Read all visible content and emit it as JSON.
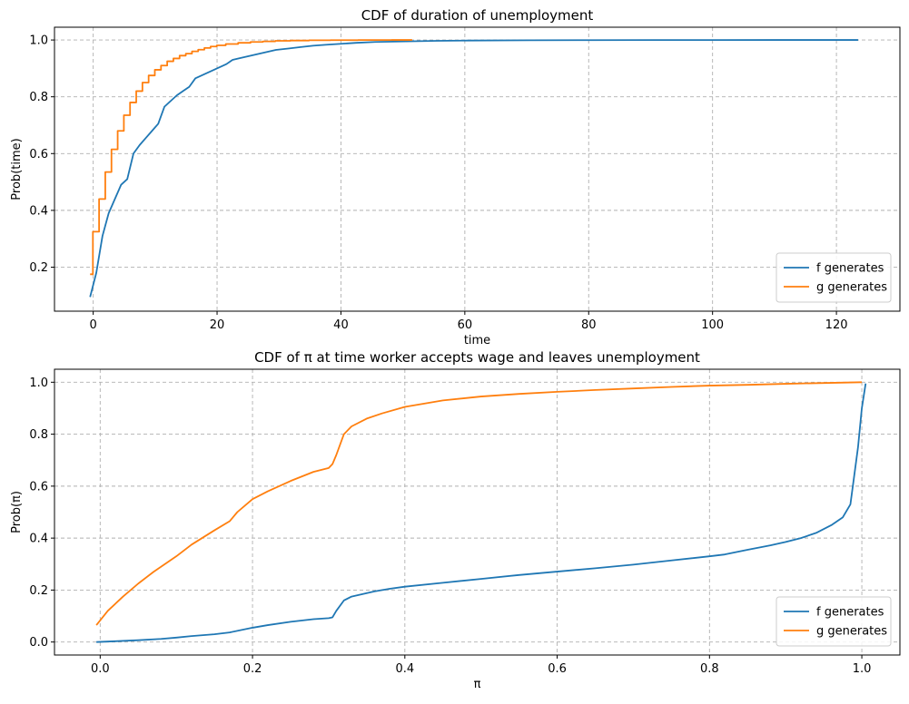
{
  "chart_data": [
    {
      "type": "line",
      "title": "CDF of duration of unemployment",
      "xlabel": "time",
      "ylabel": "Prob(time)",
      "xlim": [
        -6.25,
        130.25
      ],
      "ylim": [
        0.045,
        1.045
      ],
      "xticks": [
        0,
        20,
        40,
        60,
        80,
        100,
        120
      ],
      "xtick_labels": [
        "0",
        "20",
        "40",
        "60",
        "80",
        "100",
        "120"
      ],
      "yticks": [
        0.2,
        0.4,
        0.6,
        0.8,
        1.0
      ],
      "ytick_labels": [
        "0.2",
        "0.4",
        "0.6",
        "0.8",
        "1.0"
      ],
      "grid": true,
      "legend_position": "lower-right",
      "series": [
        {
          "name": "f generates",
          "color": "#1f77b4",
          "step": false,
          "x": [
            -0.5,
            0.5,
            1.5,
            2.5,
            3.5,
            4.5,
            5.5,
            6.5,
            7.5,
            8.5,
            9.5,
            10.5,
            11.5,
            12.5,
            13.5,
            14.5,
            15.5,
            16.5,
            17.5,
            18.5,
            19.5,
            20.5,
            21.5,
            22.5,
            23.5,
            25.5,
            27.5,
            29.5,
            31.5,
            33.5,
            35.5,
            37.5,
            39.5,
            42.5,
            45.5,
            50.5,
            55.5,
            60.5,
            70.5,
            80.5,
            90.5,
            100.5,
            110.5,
            123.5
          ],
          "y": [
            0.095,
            0.18,
            0.31,
            0.39,
            0.44,
            0.49,
            0.51,
            0.6,
            0.63,
            0.655,
            0.68,
            0.705,
            0.765,
            0.785,
            0.805,
            0.82,
            0.835,
            0.865,
            0.875,
            0.885,
            0.895,
            0.905,
            0.915,
            0.93,
            0.935,
            0.945,
            0.955,
            0.965,
            0.97,
            0.975,
            0.98,
            0.983,
            0.986,
            0.99,
            0.993,
            0.995,
            0.997,
            0.998,
            0.999,
            0.9995,
            0.9998,
            0.9999,
            1.0,
            1.0
          ]
        },
        {
          "name": "g generates",
          "color": "#ff7f0e",
          "step": true,
          "x": [
            -0.5,
            0.5,
            1.5,
            2.5,
            3.5,
            4.5,
            5.5,
            6.5,
            7.5,
            8.5,
            9.5,
            10.5,
            11.5,
            12.5,
            13.5,
            14.5,
            15.5,
            16.5,
            17.5,
            18.5,
            19.5,
            20.5,
            22.5,
            24.5,
            26.5,
            28.5,
            30.5,
            33.5,
            36.5,
            40.5,
            45.5,
            51.5
          ],
          "y": [
            0.175,
            0.325,
            0.44,
            0.535,
            0.615,
            0.68,
            0.735,
            0.78,
            0.82,
            0.85,
            0.875,
            0.895,
            0.91,
            0.925,
            0.935,
            0.945,
            0.952,
            0.96,
            0.966,
            0.972,
            0.977,
            0.981,
            0.986,
            0.99,
            0.993,
            0.995,
            0.997,
            0.998,
            0.999,
            0.9995,
            0.9998,
            1.0
          ]
        }
      ]
    },
    {
      "type": "line",
      "title": "CDF of π at time worker accepts wage and leaves unemployment",
      "xlabel": "π",
      "ylabel": "Prob(π)",
      "xlim": [
        -0.06,
        1.05
      ],
      "ylim": [
        -0.05,
        1.05
      ],
      "xticks": [
        0.0,
        0.2,
        0.4,
        0.6,
        0.8,
        1.0
      ],
      "xtick_labels": [
        "0.0",
        "0.2",
        "0.4",
        "0.6",
        "0.8",
        "1.0"
      ],
      "yticks": [
        0.0,
        0.2,
        0.4,
        0.6,
        0.8,
        1.0
      ],
      "ytick_labels": [
        "0.0",
        "0.2",
        "0.4",
        "0.6",
        "0.8",
        "1.0"
      ],
      "grid": true,
      "legend_position": "lower-right",
      "series": [
        {
          "name": "f generates",
          "color": "#1f77b4",
          "step": false,
          "x": [
            -0.005,
            0.02,
            0.05,
            0.08,
            0.1,
            0.12,
            0.15,
            0.17,
            0.2,
            0.22,
            0.25,
            0.28,
            0.3,
            0.305,
            0.31,
            0.32,
            0.33,
            0.345,
            0.36,
            0.38,
            0.4,
            0.45,
            0.5,
            0.55,
            0.6,
            0.65,
            0.7,
            0.75,
            0.8,
            0.82,
            0.85,
            0.88,
            0.9,
            0.92,
            0.94,
            0.96,
            0.975,
            0.985,
            0.995,
            1.0,
            1.005
          ],
          "y": [
            0.0,
            0.003,
            0.007,
            0.012,
            0.017,
            0.023,
            0.03,
            0.037,
            0.055,
            0.065,
            0.078,
            0.088,
            0.092,
            0.095,
            0.12,
            0.16,
            0.175,
            0.185,
            0.195,
            0.205,
            0.213,
            0.228,
            0.243,
            0.258,
            0.271,
            0.284,
            0.298,
            0.314,
            0.33,
            0.337,
            0.355,
            0.372,
            0.385,
            0.4,
            0.42,
            0.45,
            0.48,
            0.53,
            0.75,
            0.9,
            0.995
          ]
        },
        {
          "name": "g generates",
          "color": "#ff7f0e",
          "step": false,
          "x": [
            -0.005,
            0.01,
            0.03,
            0.05,
            0.07,
            0.1,
            0.12,
            0.15,
            0.17,
            0.18,
            0.2,
            0.22,
            0.25,
            0.28,
            0.3,
            0.305,
            0.31,
            0.32,
            0.33,
            0.35,
            0.37,
            0.4,
            0.45,
            0.5,
            0.55,
            0.6,
            0.65,
            0.7,
            0.75,
            0.8,
            0.85,
            0.9,
            0.95,
            1.0
          ],
          "y": [
            0.065,
            0.12,
            0.175,
            0.225,
            0.27,
            0.33,
            0.375,
            0.43,
            0.465,
            0.5,
            0.55,
            0.58,
            0.62,
            0.655,
            0.67,
            0.685,
            0.72,
            0.8,
            0.83,
            0.86,
            0.88,
            0.905,
            0.93,
            0.945,
            0.955,
            0.963,
            0.97,
            0.976,
            0.982,
            0.987,
            0.99,
            0.994,
            0.997,
            1.0
          ]
        }
      ]
    }
  ]
}
